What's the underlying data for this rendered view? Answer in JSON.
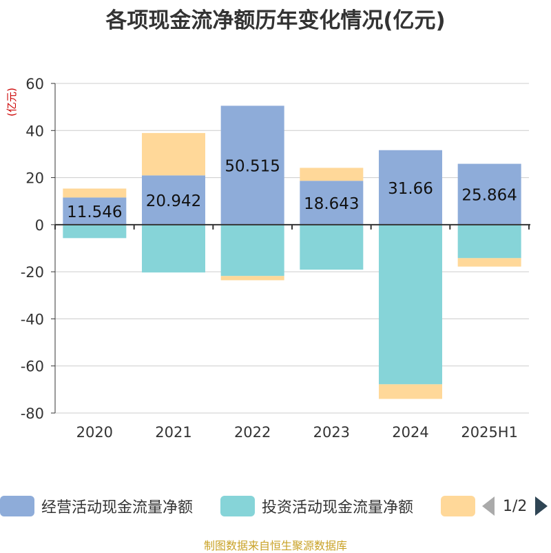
{
  "chart_data": {
    "type": "bar",
    "stacked": true,
    "title": "各项现金流净额历年变化情况(亿元)",
    "ylabel": "(亿元)",
    "ylim": [
      -80,
      60
    ],
    "yticks": [
      "60",
      "40",
      "20",
      "0",
      "-20",
      "-40",
      "-60",
      "-80"
    ],
    "categories": [
      "2020",
      "2021",
      "2022",
      "2023",
      "2024",
      "2025H1"
    ],
    "grid": true,
    "legend_position": "bottom",
    "series": [
      {
        "name": "经营活动现金流量净额",
        "color": "#8eacd9",
        "values": [
          11.546,
          20.942,
          50.515,
          18.643,
          31.66,
          25.864
        ],
        "labels": [
          "11.546",
          "20.942",
          "50.515",
          "18.643",
          "31.66",
          "25.864"
        ]
      },
      {
        "name": "投资活动现金流量净额",
        "color": "#86d4d8",
        "values": [
          -5.7,
          -20.3,
          -21.8,
          -19.1,
          -67.8,
          -14.2
        ]
      },
      {
        "name": "",
        "color": "#ffd899",
        "values": [
          3.8,
          18.0,
          -1.8,
          5.5,
          -6.2,
          -3.6
        ]
      }
    ]
  },
  "legend": {
    "pager_text": "1/2"
  },
  "footer": {
    "source": "制图数据来自恒生聚源数据库"
  }
}
